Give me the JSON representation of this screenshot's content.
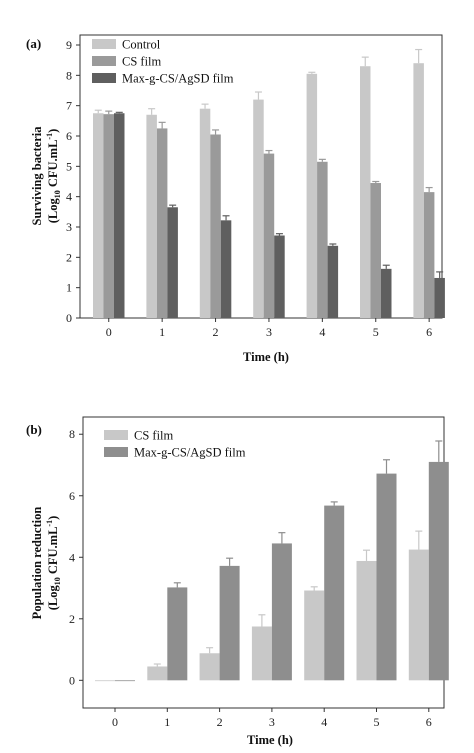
{
  "chart_data": [
    {
      "type": "bar",
      "panel_label": "(a)",
      "categories": [
        "0",
        "1",
        "2",
        "3",
        "4",
        "5",
        "6"
      ],
      "xlabel": "Time (h)",
      "ylabel_line1": "Surviving bacteria",
      "ylabel_line2_parts": [
        "(Log",
        "10",
        " CFU.mL",
        "-1",
        ")"
      ],
      "ylim": [
        0,
        9
      ],
      "yticks": [
        0,
        1,
        2,
        3,
        4,
        5,
        6,
        7,
        8,
        9
      ],
      "legend_position": "top-left",
      "series": [
        {
          "name": "Control",
          "color": "#c8c8c8",
          "values": [
            6.75,
            6.7,
            6.9,
            7.2,
            8.05,
            8.3,
            8.4
          ],
          "errors": [
            0.1,
            0.2,
            0.15,
            0.25,
            0.05,
            0.3,
            0.45
          ]
        },
        {
          "name": "CS film",
          "color": "#9a9a9a",
          "values": [
            6.72,
            6.25,
            6.05,
            5.42,
            5.15,
            4.45,
            4.15
          ],
          "errors": [
            0.1,
            0.2,
            0.15,
            0.1,
            0.08,
            0.05,
            0.15
          ]
        },
        {
          "name": "Max-g-CS/AgSD film",
          "color": "#5f5f5f",
          "values": [
            6.75,
            3.65,
            3.22,
            2.72,
            2.38,
            1.62,
            1.32
          ],
          "errors": [
            0.03,
            0.07,
            0.15,
            0.06,
            0.06,
            0.12,
            0.2
          ]
        }
      ]
    },
    {
      "type": "bar",
      "panel_label": "(b)",
      "categories": [
        "0",
        "1",
        "2",
        "3",
        "4",
        "5",
        "6"
      ],
      "xlabel": "Time (h)",
      "ylabel_line1": "Population reduction",
      "ylabel_line2_parts": [
        "(Log",
        "10",
        " CFU.mL",
        "-1",
        ")"
      ],
      "ylim": [
        -0.9,
        8.3
      ],
      "yticks": [
        0,
        2,
        4,
        6,
        8
      ],
      "legend_position": "top-left",
      "series": [
        {
          "name": "CS film",
          "color": "#c8c8c8",
          "values": [
            0.0,
            0.45,
            0.88,
            1.75,
            2.92,
            3.88,
            4.25
          ],
          "errors": [
            0,
            0.08,
            0.18,
            0.38,
            0.12,
            0.35,
            0.6
          ]
        },
        {
          "name": "Max-g-CS/AgSD film",
          "color": "#8e8e8e",
          "values": [
            0.0,
            3.02,
            3.72,
            4.45,
            5.68,
            6.72,
            7.1
          ],
          "errors": [
            0,
            0.15,
            0.25,
            0.35,
            0.12,
            0.45,
            0.68
          ]
        }
      ]
    }
  ]
}
